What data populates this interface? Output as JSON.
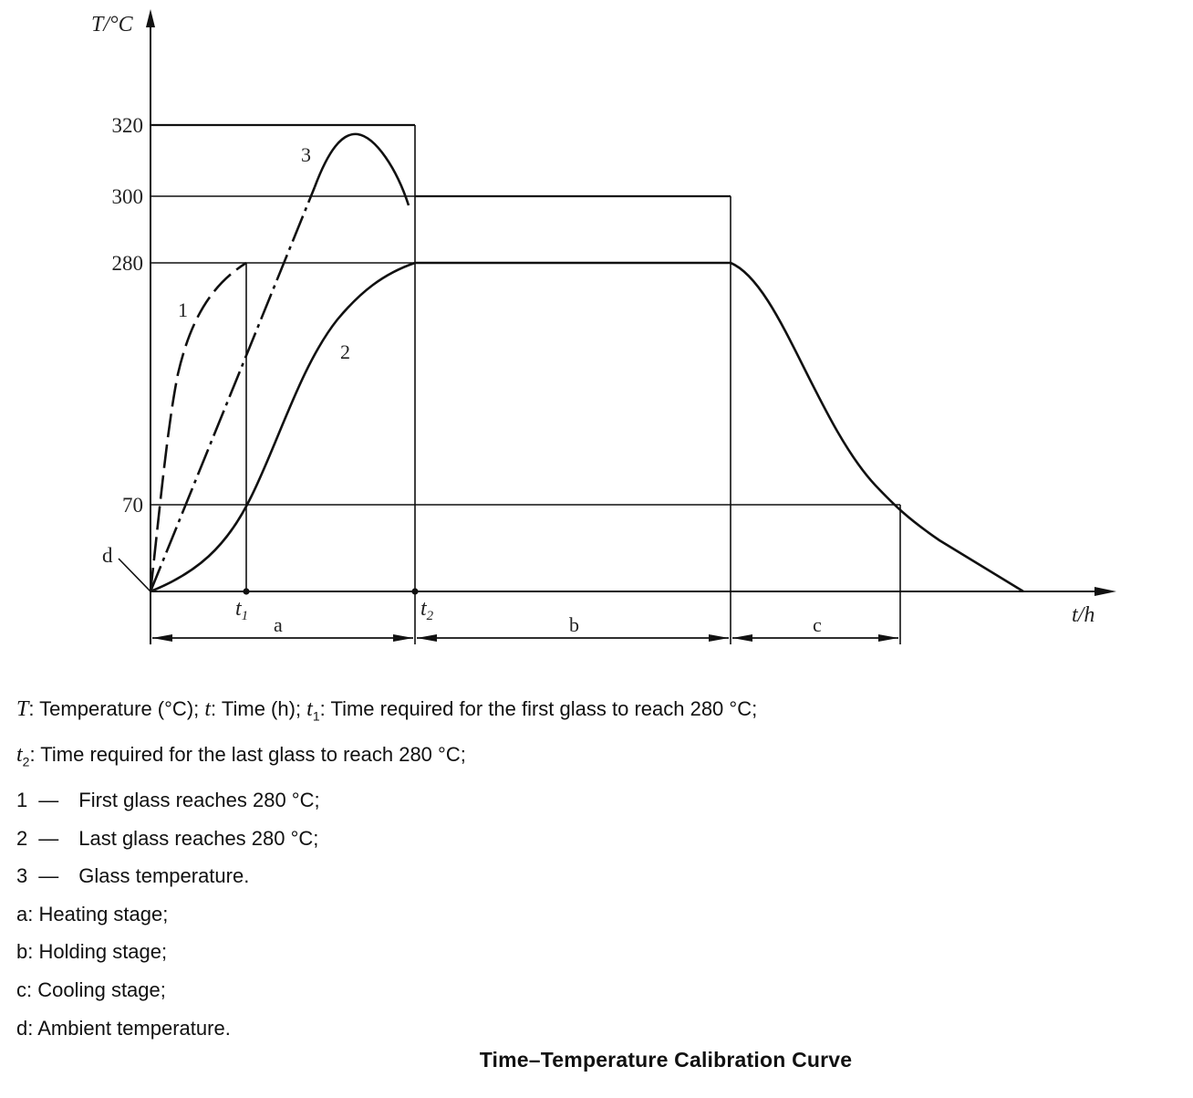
{
  "chart_data": {
    "type": "line",
    "y_axis": {
      "label": "T/°C",
      "ticks": [
        70,
        280,
        300,
        320
      ]
    },
    "x_axis": {
      "label": "t/h",
      "ticks": [
        "t1",
        "t2"
      ]
    },
    "stages": [
      {
        "id": "a",
        "label": "a",
        "from": "0",
        "to": "t2"
      },
      {
        "id": "b",
        "label": "b",
        "from": "t2",
        "to": "end-of-holding"
      },
      {
        "id": "c",
        "label": "c",
        "from": "end-of-holding",
        "to": "70"
      }
    ],
    "series": [
      {
        "name": "1",
        "style": "dashed"
      },
      {
        "name": "2",
        "style": "solid"
      },
      {
        "name": "3",
        "style": "dash-dot"
      }
    ],
    "annotations": [
      "d"
    ]
  },
  "legend": {
    "line1": [
      "T",
      ": Temperature (°C); ",
      "t",
      ": Time (h); ",
      "t",
      "1",
      ": Time required for the first glass to reach 280 °C;"
    ],
    "line2": [
      "t",
      "2",
      ": Time required for the last glass to reach 280 °C;"
    ],
    "items": [
      {
        "key": "1",
        "dash": "—",
        "text": "First glass reaches 280 °C;"
      },
      {
        "key": "2",
        "dash": "—",
        "text": "Last glass reaches 280 °C;"
      },
      {
        "key": "3",
        "dash": "—",
        "text": "Glass temperature."
      }
    ],
    "stages": [
      {
        "key": "a",
        "text": ": Heating stage;"
      },
      {
        "key": "b",
        "text": ": Holding stage;"
      },
      {
        "key": "c",
        "text": ": Cooling stage;"
      },
      {
        "key": "d",
        "text": ": Ambient temperature."
      }
    ]
  },
  "caption": "Time–Temperature Calibration Curve"
}
